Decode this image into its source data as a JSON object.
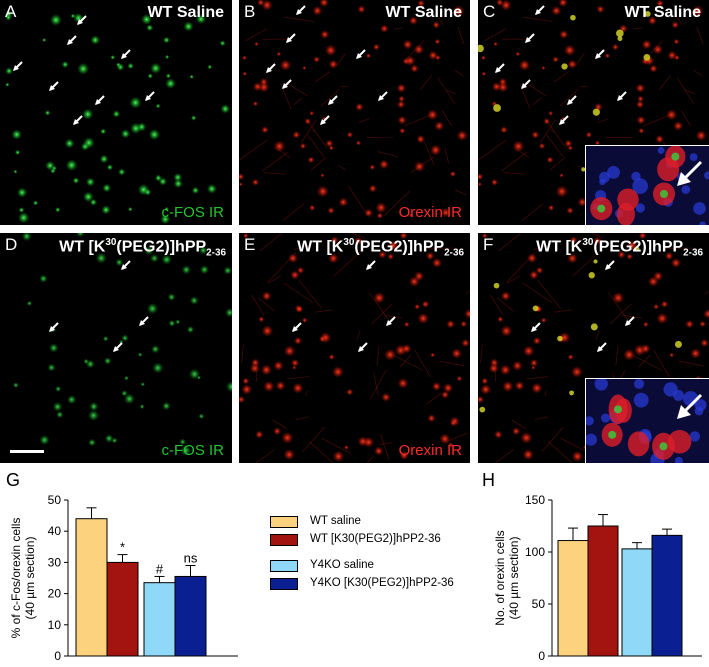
{
  "panels": [
    {
      "letter": "A",
      "title": "WT Saline",
      "stain": "c-FOS IR",
      "stain_color": "green"
    },
    {
      "letter": "B",
      "title": "WT Saline",
      "stain": "Orexin IR",
      "stain_color": "red"
    },
    {
      "letter": "C",
      "title": "WT Saline",
      "stain": "",
      "stain_color": "merge"
    },
    {
      "letter": "D",
      "title_main": "WT [K",
      "title_sup": "30",
      "title_mid": "(PEG2)]hPP",
      "title_sub": "2-36",
      "stain": "c-FOS IR",
      "stain_color": "green"
    },
    {
      "letter": "E",
      "title_main": "WT [K",
      "title_sup": "30",
      "title_mid": "(PEG2)]hPP",
      "title_sub": "2-36",
      "stain": "Orexin IR",
      "stain_color": "red"
    },
    {
      "letter": "F",
      "title_main": "WT [K",
      "title_sup": "30",
      "title_mid": "(PEG2)]hPP",
      "title_sub": "2-36",
      "stain": "",
      "stain_color": "merge"
    }
  ],
  "colors": {
    "wt_saline": "#fdd27e",
    "wt_k30": "#a3130f",
    "y4ko_saline": "#8fd8f8",
    "y4ko_k30": "#0a1f92"
  },
  "legend": [
    {
      "label": "WT saline",
      "color": "#fdd27e"
    },
    {
      "label": "WT [K30(PEG2)]hPP2-36",
      "color": "#a3130f"
    },
    {
      "label": "Y4KO saline",
      "color": "#8fd8f8"
    },
    {
      "label": "Y4KO [K30(PEG2)]hPP2-36",
      "color": "#0a1f92"
    }
  ],
  "chart_data": [
    {
      "panel": "G",
      "type": "bar",
      "ylabel_line1": "% of c-Fos/orexin cells",
      "ylabel_line2": "(40 µm section)",
      "ylim": [
        0,
        50
      ],
      "yticks": [
        0,
        10,
        20,
        30,
        40,
        50
      ],
      "groups": [
        "WT",
        "Y4KO"
      ],
      "bars": [
        {
          "series": "WT saline",
          "value": 44,
          "error": 3.5,
          "annotation": ""
        },
        {
          "series": "WT [K30(PEG2)]hPP2-36",
          "value": 30,
          "error": 2.5,
          "annotation": "*"
        },
        {
          "series": "Y4KO saline",
          "value": 23.5,
          "error": 2,
          "annotation": "#"
        },
        {
          "series": "Y4KO [K30(PEG2)]hPP2-36",
          "value": 25.5,
          "error": 3.5,
          "annotation": "ns"
        }
      ]
    },
    {
      "panel": "H",
      "type": "bar",
      "ylabel_line1": "No. of orexin cells",
      "ylabel_line2": "(40 µm section)",
      "ylim": [
        0,
        150
      ],
      "yticks": [
        0,
        50,
        100,
        150
      ],
      "groups": [
        "WT",
        "Y4KO"
      ],
      "bars": [
        {
          "series": "WT saline",
          "value": 111,
          "error": 12,
          "annotation": ""
        },
        {
          "series": "WT [K30(PEG2)]hPP2-36",
          "value": 125,
          "error": 11,
          "annotation": ""
        },
        {
          "series": "Y4KO saline",
          "value": 103,
          "error": 6,
          "annotation": ""
        },
        {
          "series": "Y4KO [K30(PEG2)]hPP2-36",
          "value": 116,
          "error": 6,
          "annotation": ""
        }
      ]
    }
  ]
}
